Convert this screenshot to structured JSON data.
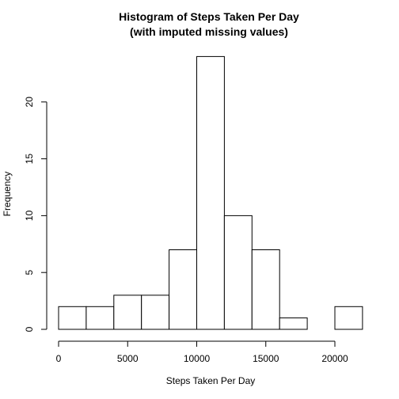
{
  "chart_data": {
    "type": "bar",
    "title": "Histogram of Steps Taken Per Day",
    "subtitle": "(with imputed missing values)",
    "xlabel": "Steps Taken Per Day",
    "ylabel": "Frequency",
    "xlim": [
      0,
      22000
    ],
    "ylim": [
      0,
      24
    ],
    "x_ticks": [
      0,
      5000,
      10000,
      15000,
      20000
    ],
    "y_ticks": [
      0,
      5,
      10,
      15,
      20
    ],
    "grid": false,
    "bins": [
      {
        "start": 0,
        "end": 2000,
        "count": 2
      },
      {
        "start": 2000,
        "end": 4000,
        "count": 2
      },
      {
        "start": 4000,
        "end": 6000,
        "count": 3
      },
      {
        "start": 6000,
        "end": 8000,
        "count": 3
      },
      {
        "start": 8000,
        "end": 10000,
        "count": 7
      },
      {
        "start": 10000,
        "end": 12000,
        "count": 24
      },
      {
        "start": 12000,
        "end": 14000,
        "count": 10
      },
      {
        "start": 14000,
        "end": 16000,
        "count": 7
      },
      {
        "start": 16000,
        "end": 18000,
        "count": 1
      },
      {
        "start": 18000,
        "end": 20000,
        "count": 0
      },
      {
        "start": 20000,
        "end": 22000,
        "count": 2
      }
    ]
  }
}
